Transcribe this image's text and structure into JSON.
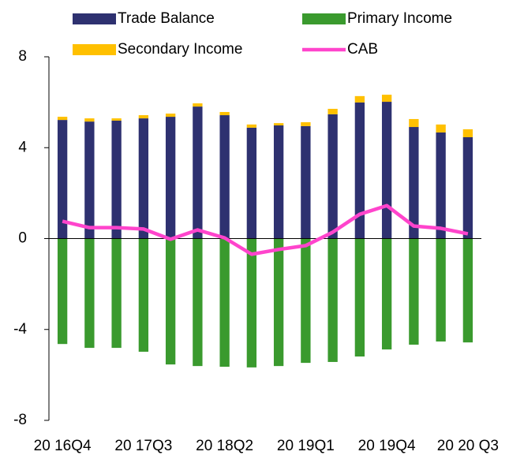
{
  "chart_data": {
    "type": "bar",
    "categories": [
      "20 16Q4",
      null,
      null,
      "20 17Q3",
      null,
      null,
      "20 18Q2",
      null,
      null,
      "20 19Q1",
      null,
      null,
      "20 19Q4",
      null,
      null,
      "20 20 Q3"
    ],
    "series": [
      {
        "name": "Trade Balance",
        "color": "#2e3170",
        "values": [
          5.22,
          5.15,
          5.19,
          5.29,
          5.36,
          5.81,
          5.43,
          4.88,
          4.98,
          4.95,
          5.47,
          5.99,
          6.02,
          4.91,
          4.67,
          4.46
        ]
      },
      {
        "name": "Primary Income",
        "color": "#3a9a2e",
        "values": [
          -4.64,
          -4.81,
          -4.81,
          -4.98,
          -5.54,
          -5.61,
          -5.64,
          -5.67,
          -5.61,
          -5.47,
          -5.43,
          -5.19,
          -4.88,
          -4.67,
          -4.53,
          -4.57
        ]
      },
      {
        "name": "Secondary Income",
        "color": "#ffc000",
        "values": [
          0.14,
          0.14,
          0.1,
          0.14,
          0.14,
          0.14,
          0.14,
          0.14,
          0.1,
          0.17,
          0.24,
          0.28,
          0.31,
          0.35,
          0.35,
          0.35
        ]
      },
      {
        "name": "CAB",
        "color": "#ff44cc",
        "type": "line",
        "values": [
          0.76,
          0.48,
          0.48,
          0.42,
          -0.03,
          0.38,
          0.03,
          -0.69,
          -0.48,
          -0.31,
          0.28,
          1.07,
          1.45,
          0.55,
          0.45,
          0.21
        ]
      }
    ],
    "stacked": true,
    "ylim": [
      -8,
      8
    ],
    "yticks": [
      -8,
      -4,
      0,
      4,
      8
    ],
    "grid": false,
    "legend": "top"
  }
}
